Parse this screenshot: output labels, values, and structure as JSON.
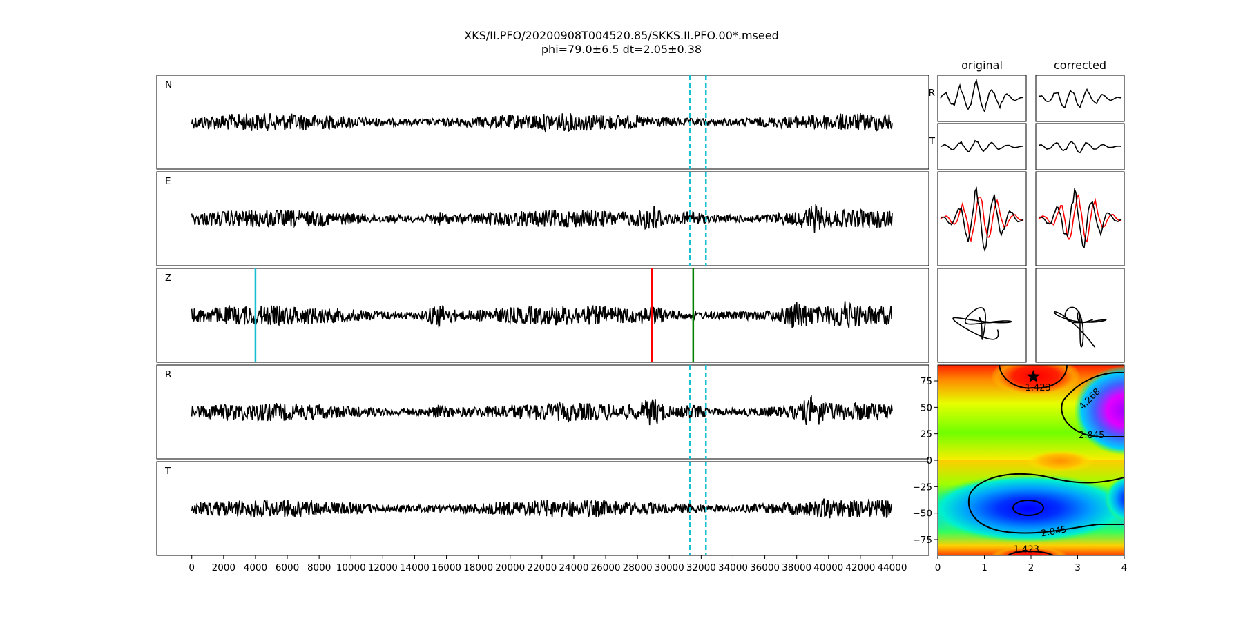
{
  "figure": {
    "title_line1": "XKS/II.PFO/20200908T004520.85/SKKS.II.PFO.00*.mseed",
    "title_line2": "phi=79.0±6.5 dt=2.05±0.38"
  },
  "chart_data": [
    {
      "type": "line",
      "name": "waveforms",
      "panels": [
        {
          "label": "N"
        },
        {
          "label": "E"
        },
        {
          "label": "Z"
        },
        {
          "label": "R"
        },
        {
          "label": "T"
        }
      ],
      "x_ticks": [
        0,
        2000,
        4000,
        6000,
        8000,
        10000,
        12000,
        14000,
        16000,
        18000,
        20000,
        22000,
        24000,
        26000,
        28000,
        30000,
        32000,
        34000,
        36000,
        38000,
        40000,
        42000,
        44000
      ],
      "xlim": [
        -2200,
        46300
      ],
      "window_lines": [
        31300,
        32300
      ],
      "phase_lines": [
        {
          "x": 4000,
          "color": "#17becf"
        },
        {
          "x": 28900,
          "color": "#ff0000"
        },
        {
          "x": 31500,
          "color": "#008000"
        }
      ]
    },
    {
      "type": "line",
      "name": "particle-motion",
      "column_titles": [
        "original",
        "corrected"
      ],
      "row_labels": [
        "R",
        "T"
      ]
    },
    {
      "type": "heatmap",
      "name": "error-surface",
      "xlim": [
        0,
        4
      ],
      "ylim": [
        -90,
        90
      ],
      "x_ticks": [
        "0",
        "1",
        "2",
        "3",
        "4"
      ],
      "y_ticks": [
        "75",
        "50",
        "25",
        "0",
        "−25",
        "−50",
        "−75"
      ],
      "y_tick_values": [
        75,
        50,
        25,
        0,
        -25,
        -50,
        -75
      ],
      "contour_labels": [
        {
          "text": "1.423",
          "x": 2.15,
          "y": 66
        },
        {
          "text": "4.268",
          "x": 3.3,
          "y": 56
        },
        {
          "text": "2.845",
          "x": 3.3,
          "y": 21
        },
        {
          "text": "2.845",
          "x": 2.5,
          "y": -70
        },
        {
          "text": "1.423",
          "x": 1.9,
          "y": -87
        }
      ],
      "best_fit": {
        "x": 2.05,
        "y": 79.0
      }
    }
  ]
}
